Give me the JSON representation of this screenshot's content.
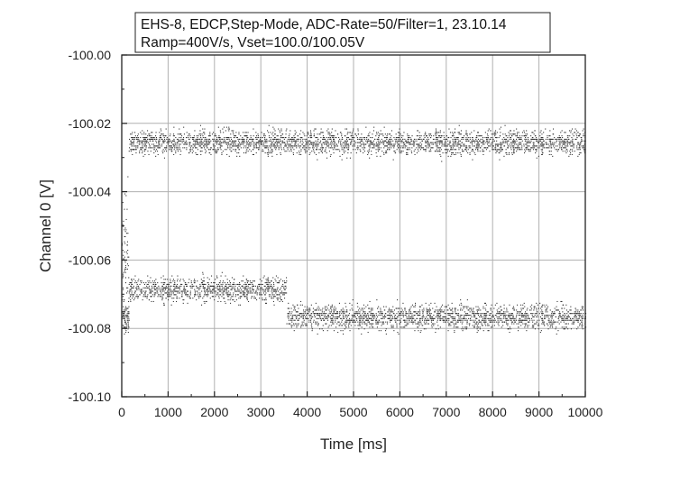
{
  "chart_data": {
    "type": "scatter",
    "title_lines": [
      "EHS-8, EDCP,Step-Mode, ADC-Rate=50/Filter=1, 23.10.14",
      "Ramp=400V/s, Vset=100.0/100.05V"
    ],
    "xlabel": "Time [ms]",
    "ylabel": "Channel 0 [V]",
    "xlim": [
      0,
      10000
    ],
    "ylim": [
      -100.1,
      -100.0
    ],
    "x_ticks": [
      0,
      1000,
      2000,
      3000,
      4000,
      5000,
      6000,
      7000,
      8000,
      9000,
      10000
    ],
    "x_tick_labels": [
      "0",
      "1000",
      "2000",
      "3000",
      "4000",
      "5000",
      "6000",
      "7000",
      "8000",
      "9000",
      "10000"
    ],
    "y_ticks": [
      -100.1,
      -100.08,
      -100.06,
      -100.04,
      -100.02,
      -100.0
    ],
    "y_tick_labels": [
      "-100.10",
      "-100.08",
      "-100.06",
      "-100.04",
      "-100.02",
      "-100.00"
    ],
    "grid": true,
    "marker_color": "#333333",
    "series": [
      {
        "segments": [
          {
            "x_start": 0,
            "x_end": 150,
            "y_mean": -100.077,
            "y_spread": 0.0045
          },
          {
            "x_start": 150,
            "x_end": 3550,
            "y_mean": -100.0685,
            "y_spread": 0.0035
          },
          {
            "x_start": 3550,
            "x_end": 10000,
            "y_mean": -100.0765,
            "y_spread": 0.0035
          }
        ]
      },
      {
        "segments": [
          {
            "x_start": 0,
            "x_end": 150,
            "y_mean": -100.06,
            "y_spread": 0.02
          },
          {
            "x_start": 150,
            "x_end": 10000,
            "y_mean": -100.0255,
            "y_spread": 0.0035
          }
        ]
      }
    ]
  }
}
